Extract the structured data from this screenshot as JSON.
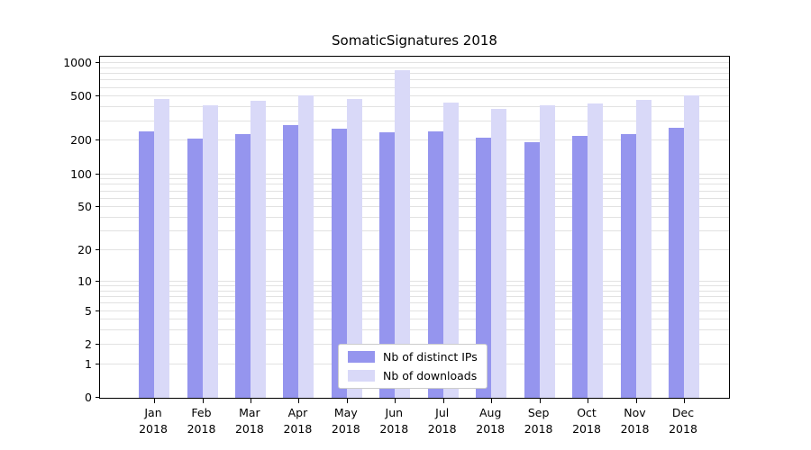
{
  "figure": {
    "background": "#ffffff"
  },
  "chart_data": {
    "type": "bar",
    "title": "SomaticSignatures 2018",
    "categories": [
      "Jan 2018",
      "Feb 2018",
      "Mar 2018",
      "Apr 2018",
      "May 2018",
      "Jun 2018",
      "Jul 2018",
      "Aug 2018",
      "Sep 2018",
      "Oct 2018",
      "Nov 2018",
      "Dec 2018"
    ],
    "series": [
      {
        "name": "Nb of distinct IPs",
        "color": "#9595ee",
        "values": [
          245,
          208,
          230,
          275,
          255,
          240,
          245,
          215,
          196,
          220,
          228,
          262
        ]
      },
      {
        "name": "Nb of downloads",
        "color": "#d9d9f8",
        "values": [
          480,
          415,
          460,
          515,
          475,
          870,
          445,
          390,
          420,
          435,
          465,
          510
        ]
      }
    ],
    "xlabel": "",
    "ylabel": "",
    "yscale": "log1p",
    "ylim": [
      0,
      1000
    ],
    "yticks": [
      0,
      1,
      2,
      5,
      10,
      20,
      50,
      100,
      200,
      500,
      1000
    ],
    "ytick_labels": [
      "0",
      "1",
      "2",
      "5",
      "10",
      "20",
      "50",
      "100",
      "200",
      "500",
      "1000"
    ],
    "gridline_values": [
      1,
      2,
      3,
      4,
      5,
      6,
      7,
      8,
      9,
      10,
      20,
      30,
      40,
      50,
      60,
      70,
      80,
      90,
      100,
      200,
      300,
      400,
      500,
      600,
      700,
      800,
      900,
      1000
    ],
    "grid_color": "#e2e2e2",
    "legend": {
      "position": "lower center inside plot",
      "entries": [
        "Nb of distinct IPs",
        "Nb of downloads"
      ]
    }
  }
}
